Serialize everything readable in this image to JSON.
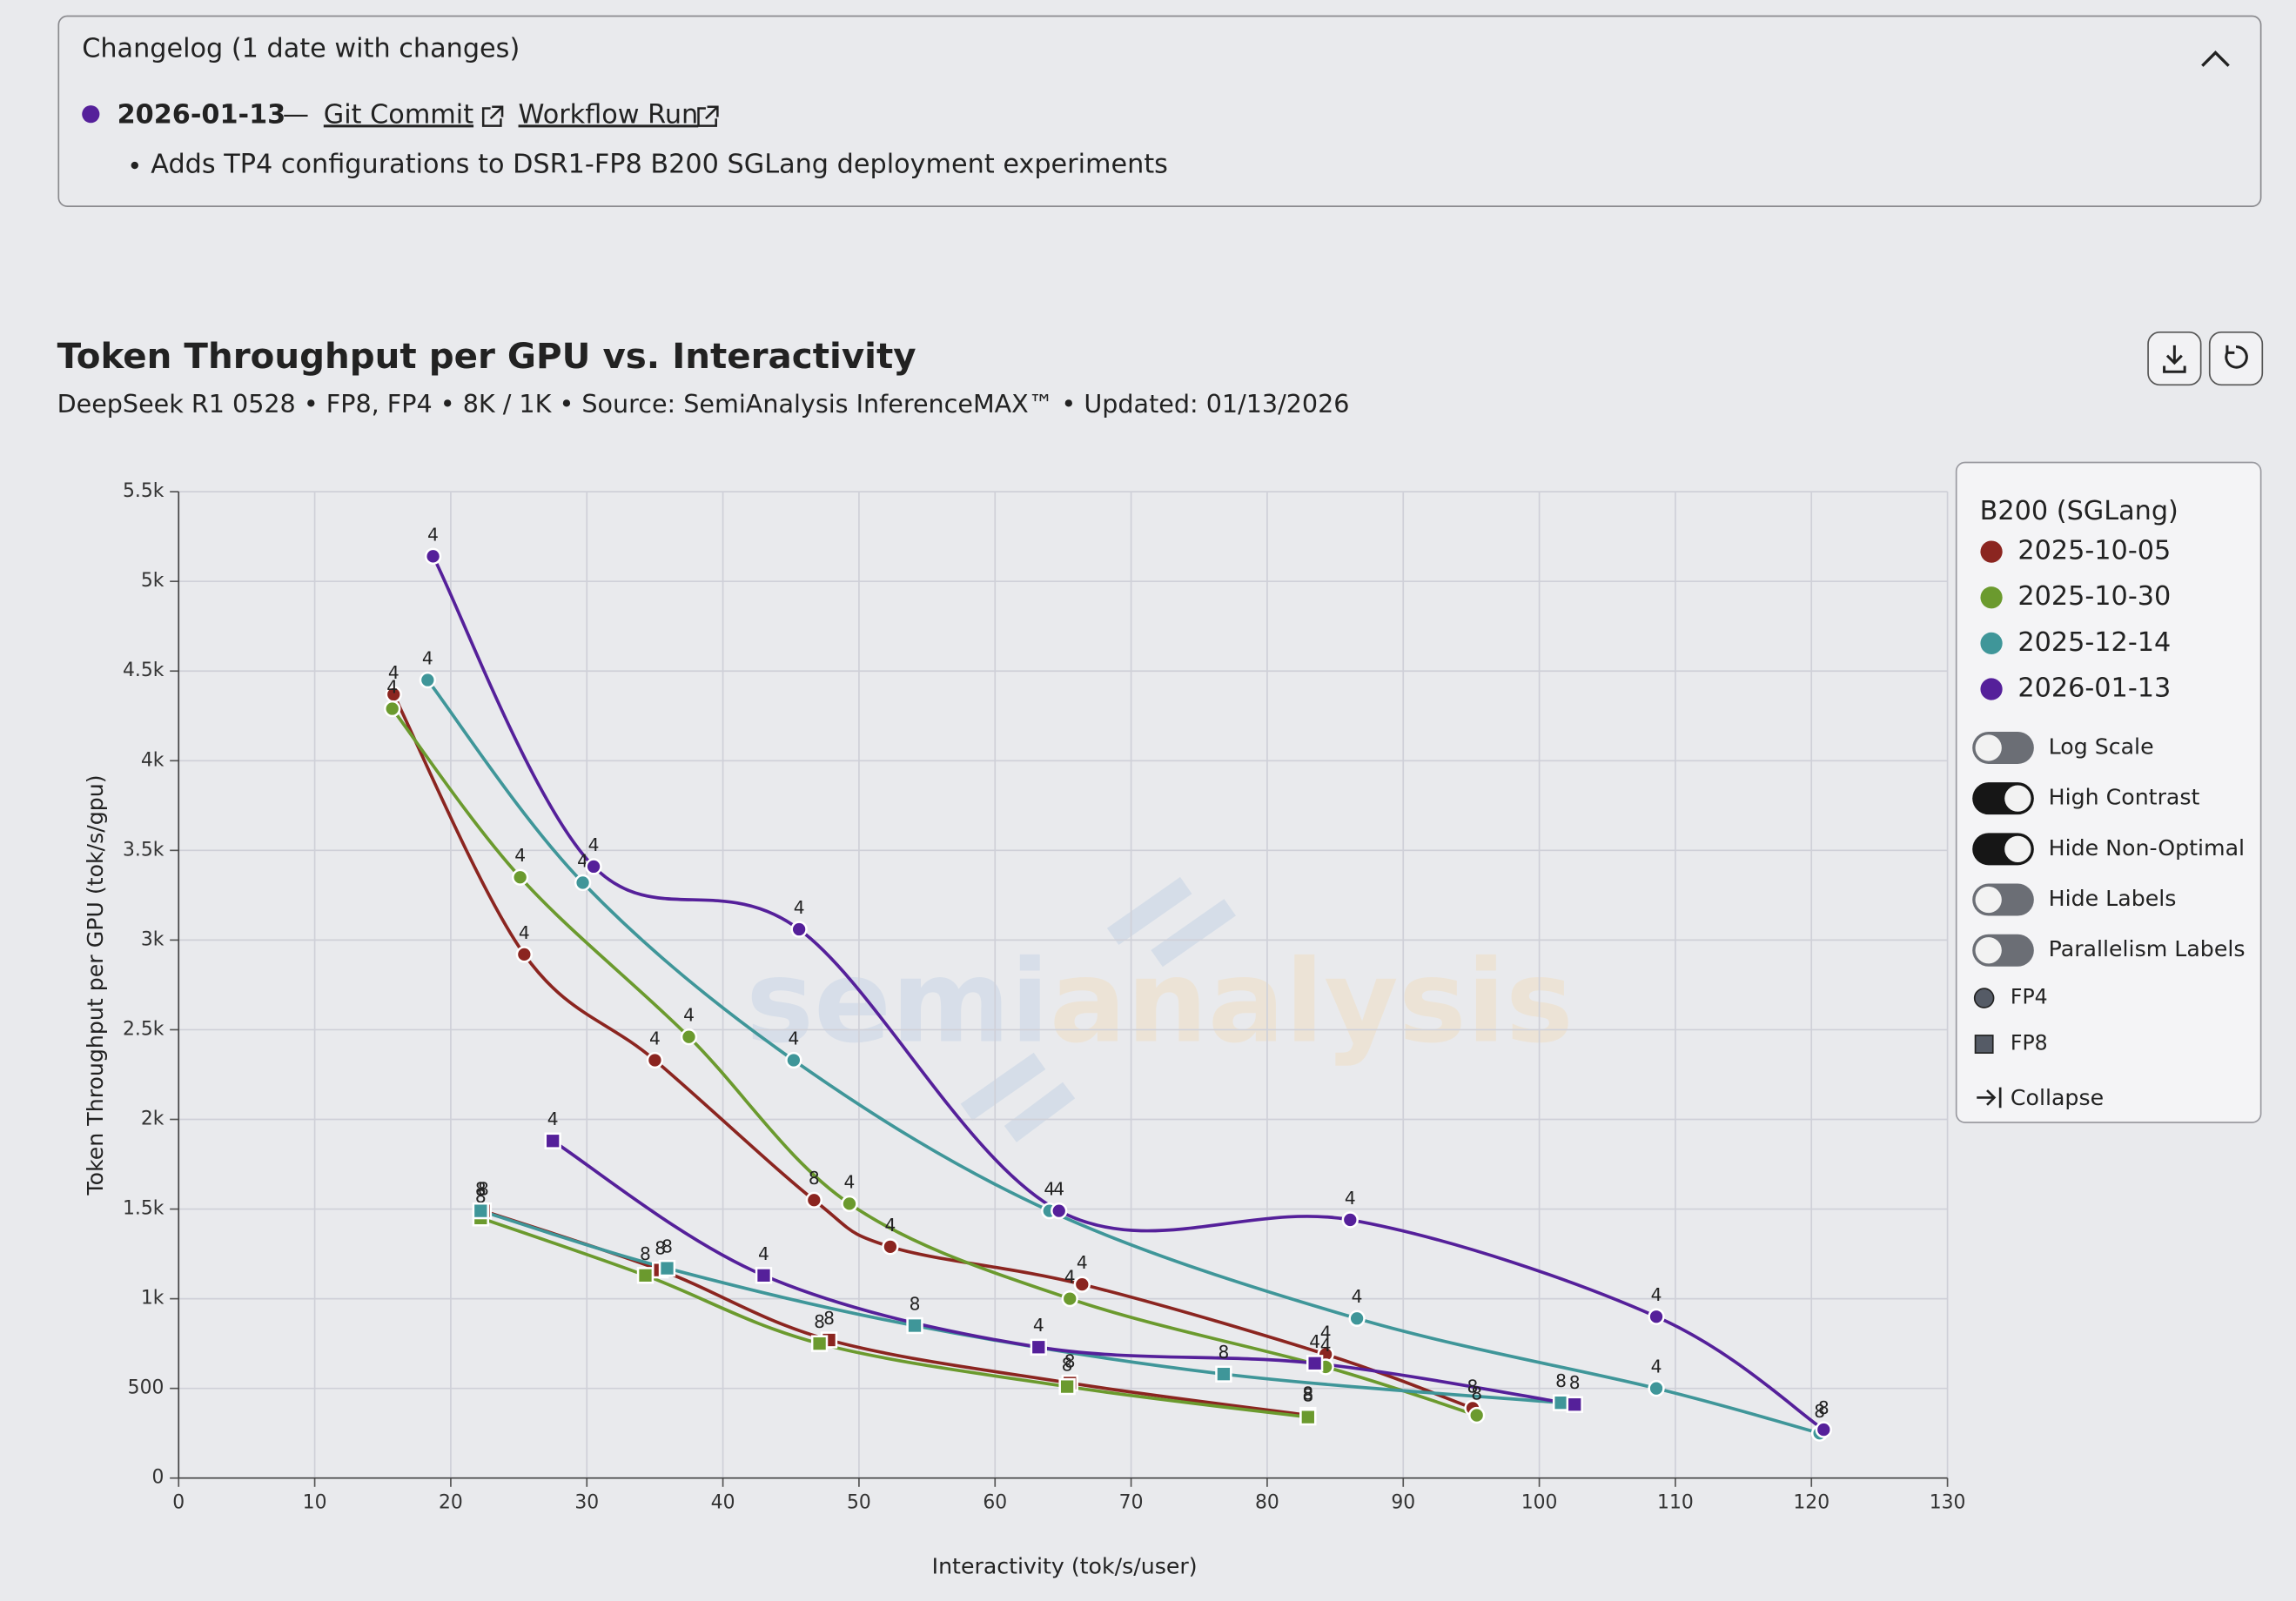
{
  "changelog": {
    "title": "Changelog (1 date with changes)",
    "entries": [
      {
        "date": "2026-01-13",
        "separator": "—",
        "links": [
          "Git Commit",
          "Workflow Run"
        ],
        "notes": [
          "Adds TP4 configurations to DSR1-FP8 B200 SGLang deployment experiments"
        ]
      }
    ]
  },
  "chart_data": {
    "type": "scatter",
    "title": "Token Throughput per GPU vs. Interactivity",
    "subtitle": "DeepSeek R1 0528 • FP8, FP4 • 8K / 1K • Source: SemiAnalysis InferenceMAX™ • Updated: 01/13/2026",
    "x_label": "Interactivity (tok/s/user)",
    "y_label": "Token Throughput per GPU (tok/s/gpu)",
    "watermark": [
      "semi",
      "analysis"
    ],
    "xlim": [
      0,
      130
    ],
    "xticks": [
      0,
      10,
      20,
      30,
      40,
      50,
      60,
      70,
      80,
      90,
      100,
      110,
      120,
      130
    ],
    "ylim": [
      0,
      5500
    ],
    "yticks": [
      0,
      500,
      {
        "value": 1000,
        "label": "1k"
      },
      {
        "value": 1500,
        "label": "1.5k"
      },
      {
        "value": 2000,
        "label": "2k"
      },
      {
        "value": 2500,
        "label": "2.5k"
      },
      {
        "value": 3000,
        "label": "3k"
      },
      {
        "value": 3500,
        "label": "3.5k"
      },
      {
        "value": 4000,
        "label": "4k"
      },
      {
        "value": 4500,
        "label": "4.5k"
      },
      {
        "value": 5000,
        "label": "5k"
      },
      {
        "value": 5500,
        "label": "5.5k"
      }
    ],
    "grid": true,
    "series": [
      {
        "name": "2025-10-05",
        "color": "#8b2520",
        "groups": [
          {
            "x": [
              15.8,
              25.4,
              35.0,
              46.7,
              52.3,
              66.4,
              84.3,
              95.1
            ],
            "values": [
              4370,
              2920,
              2330,
              1550,
              1290,
              1080,
              690,
              390
            ],
            "labels": [
              "4",
              "4",
              "4",
              "8",
              "4",
              "4",
              "4",
              "8"
            ]
          },
          {
            "x": [
              22.4,
              35.4,
              47.8,
              65.5,
              83.0
            ],
            "values": [
              1490,
              1160,
              770,
              530,
              350
            ],
            "labels": [
              "8",
              "8",
              "8",
              "8",
              "8"
            ]
          }
        ]
      },
      {
        "name": "2025-10-30",
        "color": "#6b9a2e",
        "groups": [
          {
            "x": [
              15.7,
              25.1,
              37.5,
              49.3,
              65.5,
              84.3,
              95.4
            ],
            "values": [
              4290,
              3350,
              2460,
              1530,
              1000,
              620,
              350
            ],
            "labels": [
              "4",
              "4",
              "4",
              "4",
              "4",
              "4",
              "8"
            ]
          },
          {
            "x": [
              22.2,
              34.3,
              47.1,
              65.3,
              83.0
            ],
            "values": [
              1450,
              1130,
              750,
              510,
              340
            ],
            "labels": [
              "8",
              "8",
              "8",
              "8",
              "8"
            ]
          }
        ]
      },
      {
        "name": "2025-12-14",
        "color": "#3f9699",
        "groups": [
          {
            "x": [
              18.3,
              29.7,
              45.2,
              64.0,
              86.6,
              108.6,
              120.6
            ],
            "values": [
              4450,
              3320,
              2330,
              1490,
              890,
              500,
              250
            ],
            "labels": [
              "4",
              "4",
              "4",
              "4",
              "4",
              "4",
              "8"
            ]
          },
          {
            "x": [
              22.2,
              35.9,
              54.1,
              76.8,
              101.6
            ],
            "values": [
              1490,
              1170,
              850,
              580,
              420
            ],
            "labels": [
              "8",
              "8",
              "8",
              "8",
              "8"
            ]
          }
        ]
      },
      {
        "name": "2026-01-13",
        "color": "#55209a",
        "groups": [
          {
            "x": [
              18.7,
              30.5,
              45.6,
              64.7,
              86.1,
              108.6,
              120.9
            ],
            "values": [
              5140,
              3410,
              3060,
              1490,
              1440,
              900,
              270
            ],
            "labels": [
              "4",
              "4",
              "4",
              "4",
              "4",
              "4",
              "8"
            ]
          },
          {
            "x": [
              27.5,
              43.0,
              63.2,
              83.5,
              102.6
            ],
            "values": [
              1880,
              1130,
              730,
              640,
              410
            ],
            "labels": [
              "4",
              "4",
              "4",
              "4",
              "8"
            ]
          }
        ]
      }
    ],
    "legend": {
      "title": "B200 (SGLang)",
      "toggles": [
        {
          "label": "Log Scale",
          "on": false
        },
        {
          "label": "High Contrast",
          "on": true
        },
        {
          "label": "Hide Non-Optimal",
          "on": true
        },
        {
          "label": "Hide Labels",
          "on": false
        },
        {
          "label": "Parallelism Labels",
          "on": false
        }
      ],
      "markers": [
        {
          "name": "FP4",
          "shape": "circle"
        },
        {
          "name": "FP8",
          "shape": "square"
        }
      ],
      "collapse": "Collapse"
    }
  }
}
